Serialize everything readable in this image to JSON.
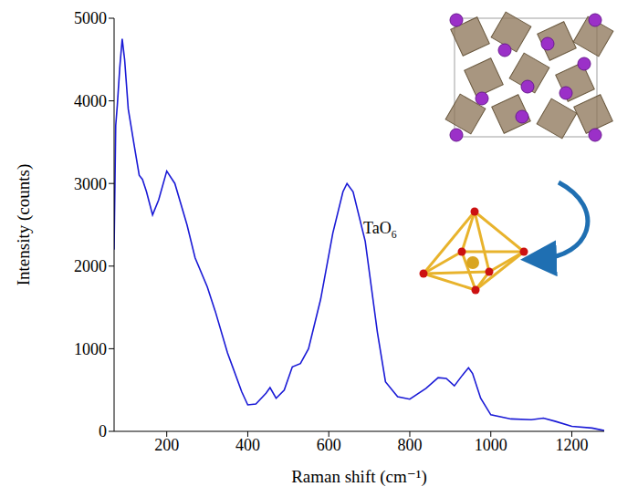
{
  "chart_data": {
    "type": "line",
    "x_label": "Raman shift (cm⁻¹)",
    "y_label": "Intensity (counts)",
    "color": "#1a1ad6",
    "grid": false,
    "xlim": [
      70,
      1280
    ],
    "ylim": [
      0,
      5000
    ],
    "xticks": [
      200,
      400,
      600,
      800,
      1000,
      1200
    ],
    "yticks": [
      0,
      1000,
      2000,
      3000,
      4000,
      5000
    ],
    "x": [
      70,
      74,
      78,
      84,
      90,
      96,
      105,
      120,
      132,
      140,
      150,
      165,
      180,
      200,
      220,
      250,
      270,
      300,
      320,
      350,
      385,
      400,
      420,
      445,
      455,
      470,
      490,
      510,
      530,
      550,
      580,
      610,
      635,
      645,
      660,
      690,
      720,
      740,
      770,
      800,
      840,
      870,
      890,
      910,
      930,
      945,
      955,
      975,
      1000,
      1050,
      1100,
      1130,
      1160,
      1200,
      1250,
      1280
    ],
    "values": [
      2200,
      3700,
      3950,
      4400,
      4750,
      4500,
      3900,
      3450,
      3100,
      3050,
      2900,
      2620,
      2800,
      3150,
      3000,
      2500,
      2100,
      1750,
      1450,
      950,
      480,
      320,
      330,
      460,
      530,
      400,
      500,
      780,
      820,
      1000,
      1600,
      2400,
      2900,
      3000,
      2900,
      2300,
      1200,
      600,
      420,
      390,
      520,
      650,
      640,
      550,
      680,
      770,
      700,
      400,
      200,
      150,
      140,
      160,
      120,
      60,
      40,
      10
    ],
    "annotations": [
      {
        "text": "TaO6"
      }
    ]
  }
}
